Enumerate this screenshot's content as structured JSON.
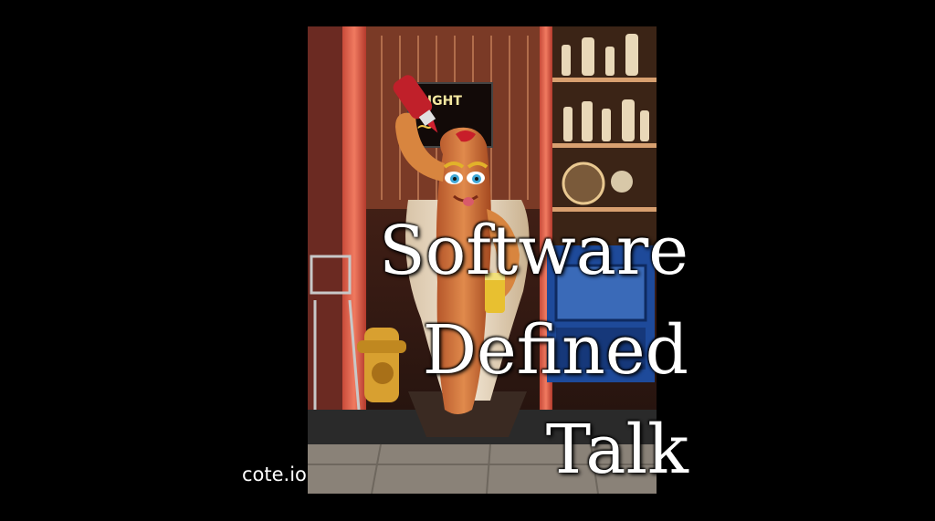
{
  "title": {
    "line1": "Software",
    "line2": "Defined",
    "line3": "Talk"
  },
  "site": "cote.io",
  "sign": "LIGHT"
}
